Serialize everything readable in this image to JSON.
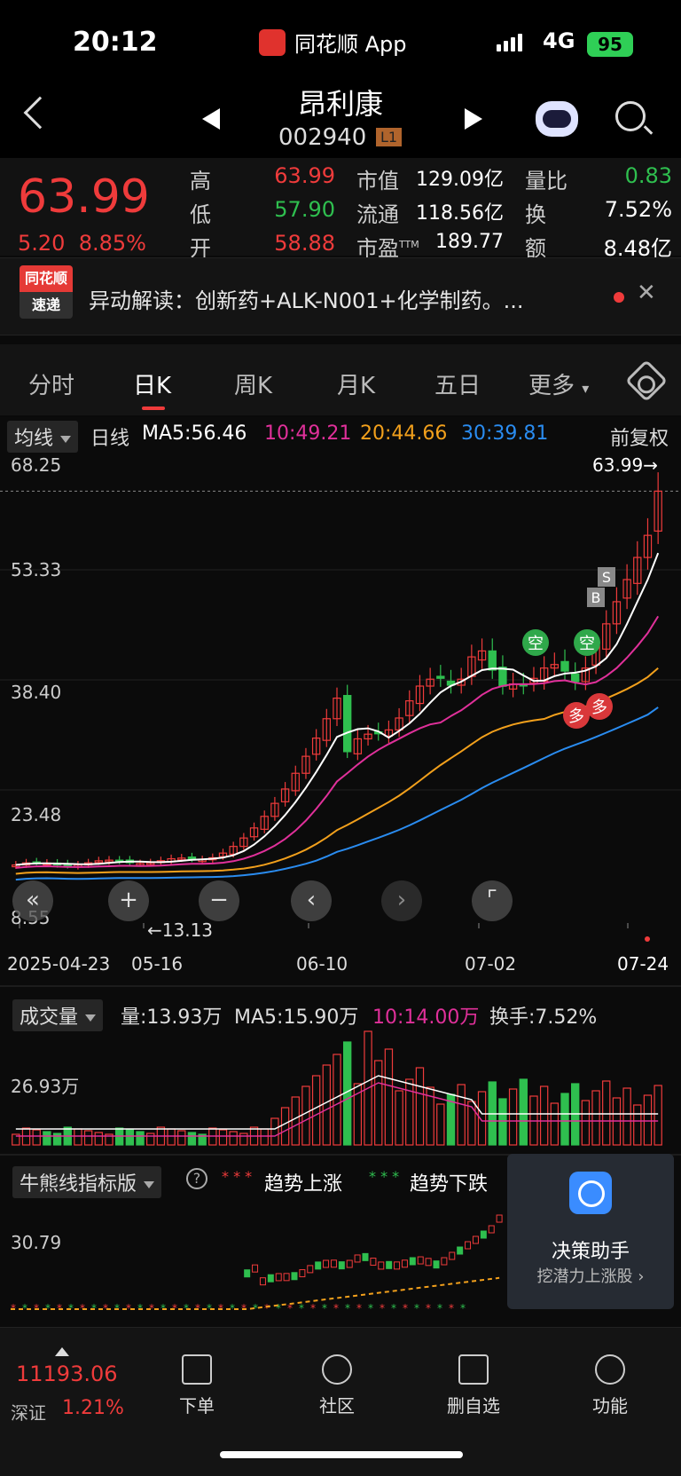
{
  "status": {
    "time": "20:12",
    "app": "同花顺 App",
    "network": "4G",
    "battery": "95"
  },
  "header": {
    "name": "昂利康",
    "code": "002940",
    "level": "L1"
  },
  "quote": {
    "price": "63.99",
    "change": "5.20",
    "change_pct": "8.85%",
    "high_label": "高",
    "high": "63.99",
    "low_label": "低",
    "low": "57.90",
    "open_label": "开",
    "open": "58.88",
    "mcap_label": "市值",
    "mcap": "129.09亿",
    "float_label": "流通",
    "float": "118.56亿",
    "pe_label": "市盈",
    "pe_sup": "TTM",
    "pe": "189.77",
    "vr_label": "量比",
    "vr": "0.83",
    "turn_label": "换",
    "turn": "7.52%",
    "amt_label": "额",
    "amt": "8.48亿"
  },
  "ticker": {
    "badge_top": "同花顺",
    "badge_bottom": "速递",
    "text": "异动解读：创新药+ALK-N001+化学制药。..."
  },
  "tabs": [
    "分时",
    "日K",
    "周K",
    "月K",
    "五日",
    "更多"
  ],
  "kline": {
    "ma_mode": "均线",
    "period": "日线",
    "ma5": "MA5:56.46",
    "ma10": "10:49.21",
    "ma20": "20:44.66",
    "ma30": "30:39.81",
    "adjust": "前复权",
    "y_labels": [
      "68.25",
      "53.33",
      "38.40",
      "23.48",
      "8.55"
    ],
    "last_price_marker": "63.99→",
    "low_marker": "←13.13",
    "x_labels": [
      "2025-04-23",
      "05-16",
      "06-10",
      "07-02",
      "07-24"
    ],
    "signal_kong": "空",
    "signal_duo": "多",
    "signal_s": "S",
    "signal_b": "B"
  },
  "volume": {
    "label": "成交量",
    "vol": "量:13.93万",
    "ma5": "MA5:15.90万",
    "ma10": "10:14.00万",
    "turnover": "换手:7.52%",
    "y_label": "26.93万"
  },
  "indicator": {
    "label": "牛熊线指标版",
    "help": "?",
    "up": "趋势上涨",
    "down": "趋势下跌",
    "y_label": "30.79"
  },
  "assistant": {
    "title": "决策助手",
    "subtitle": "挖潜力上涨股"
  },
  "bottom": {
    "index_value": "11193.06",
    "index_name": "深证",
    "index_pct": "1.21%",
    "items": [
      "下单",
      "社区",
      "删自选",
      "功能"
    ]
  },
  "colors": {
    "up": "#ef3b3b",
    "down": "#2fbf4f",
    "ma5": "#ffffff",
    "ma10": "#e0309a",
    "ma20": "#f2a01c",
    "ma30": "#2a8cf0"
  }
}
